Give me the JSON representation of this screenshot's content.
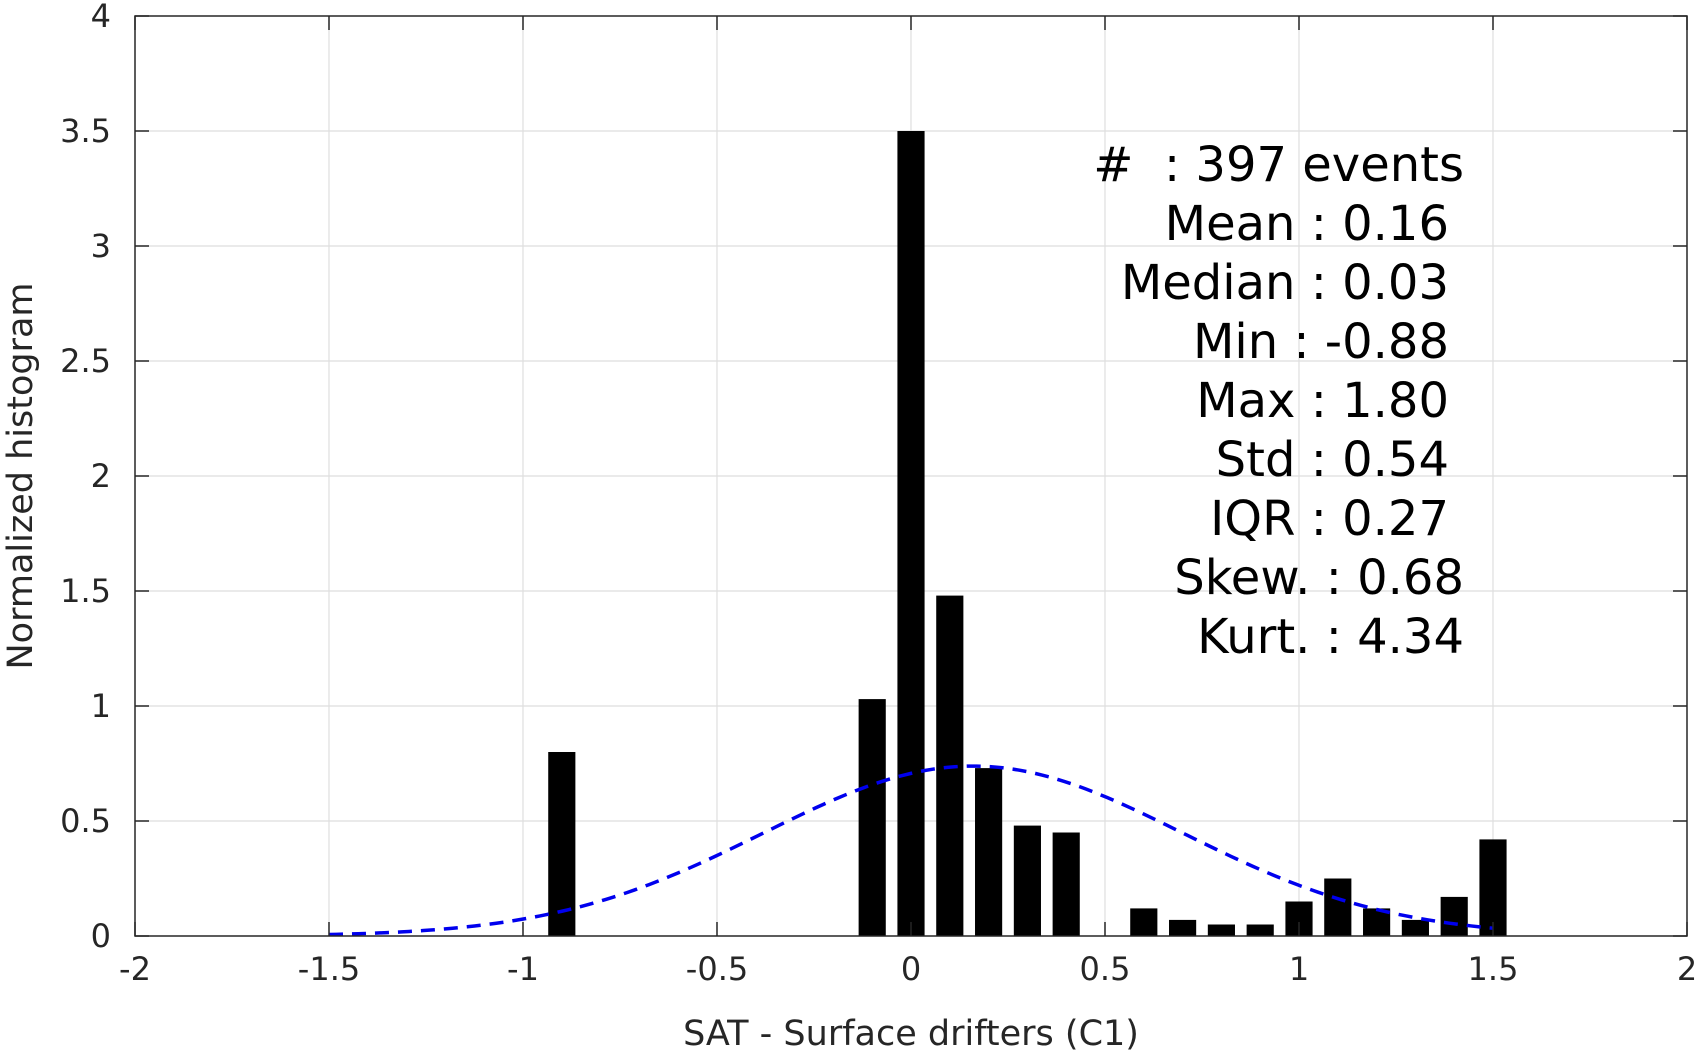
{
  "chart_data": {
    "type": "bar",
    "xlabel": "SAT - Surface drifters (C1)",
    "ylabel": "Normalized histogram",
    "xlim": [
      -2,
      2
    ],
    "ylim": [
      0,
      4
    ],
    "grid": true,
    "x_ticks": [
      -2,
      -1.5,
      -1,
      -0.5,
      0,
      0.5,
      1,
      1.5,
      2
    ],
    "x_tick_labels": [
      "-2",
      "-1.5",
      "-1",
      "-0.5",
      "0",
      "0.5",
      "1",
      "1.5",
      "2"
    ],
    "y_ticks": [
      0,
      0.5,
      1,
      1.5,
      2,
      2.5,
      3,
      3.5,
      4
    ],
    "y_tick_labels": [
      "0",
      "0.5",
      "1",
      "1.5",
      "2",
      "2.5",
      "3",
      "3.5",
      "4"
    ],
    "bar_width": 0.07,
    "bars": [
      {
        "x": -0.9,
        "value": 0.8
      },
      {
        "x": -0.1,
        "value": 1.03
      },
      {
        "x": 0.0,
        "value": 3.5
      },
      {
        "x": 0.1,
        "value": 1.48
      },
      {
        "x": 0.2,
        "value": 0.73
      },
      {
        "x": 0.3,
        "value": 0.48
      },
      {
        "x": 0.4,
        "value": 0.45
      },
      {
        "x": 0.6,
        "value": 0.12
      },
      {
        "x": 0.7,
        "value": 0.07
      },
      {
        "x": 0.8,
        "value": 0.05
      },
      {
        "x": 0.9,
        "value": 0.05
      },
      {
        "x": 1.0,
        "value": 0.15
      },
      {
        "x": 1.1,
        "value": 0.25
      },
      {
        "x": 1.2,
        "value": 0.12
      },
      {
        "x": 1.3,
        "value": 0.07
      },
      {
        "x": 1.4,
        "value": 0.17
      },
      {
        "x": 1.5,
        "value": 0.42
      }
    ],
    "fit_curve": {
      "style": "dashed",
      "color": "#0000ee",
      "distribution": "normal",
      "mean": 0.16,
      "std": 0.54,
      "x_range": [
        -1.5,
        1.5
      ]
    },
    "bar_color": "#000000"
  },
  "stats": {
    "count_line": "#  : 397 events",
    "mean_line": "Mean : 0.16",
    "median_line": "Median : 0.03",
    "min_line": "Min : -0.88",
    "max_line": "Max : 1.80",
    "std_line": "Std : 0.54",
    "iqr_line": "IQR : 0.27",
    "skew_line": "Skew. : 0.68",
    "kurt_line": "Kurt. : 4.34"
  }
}
